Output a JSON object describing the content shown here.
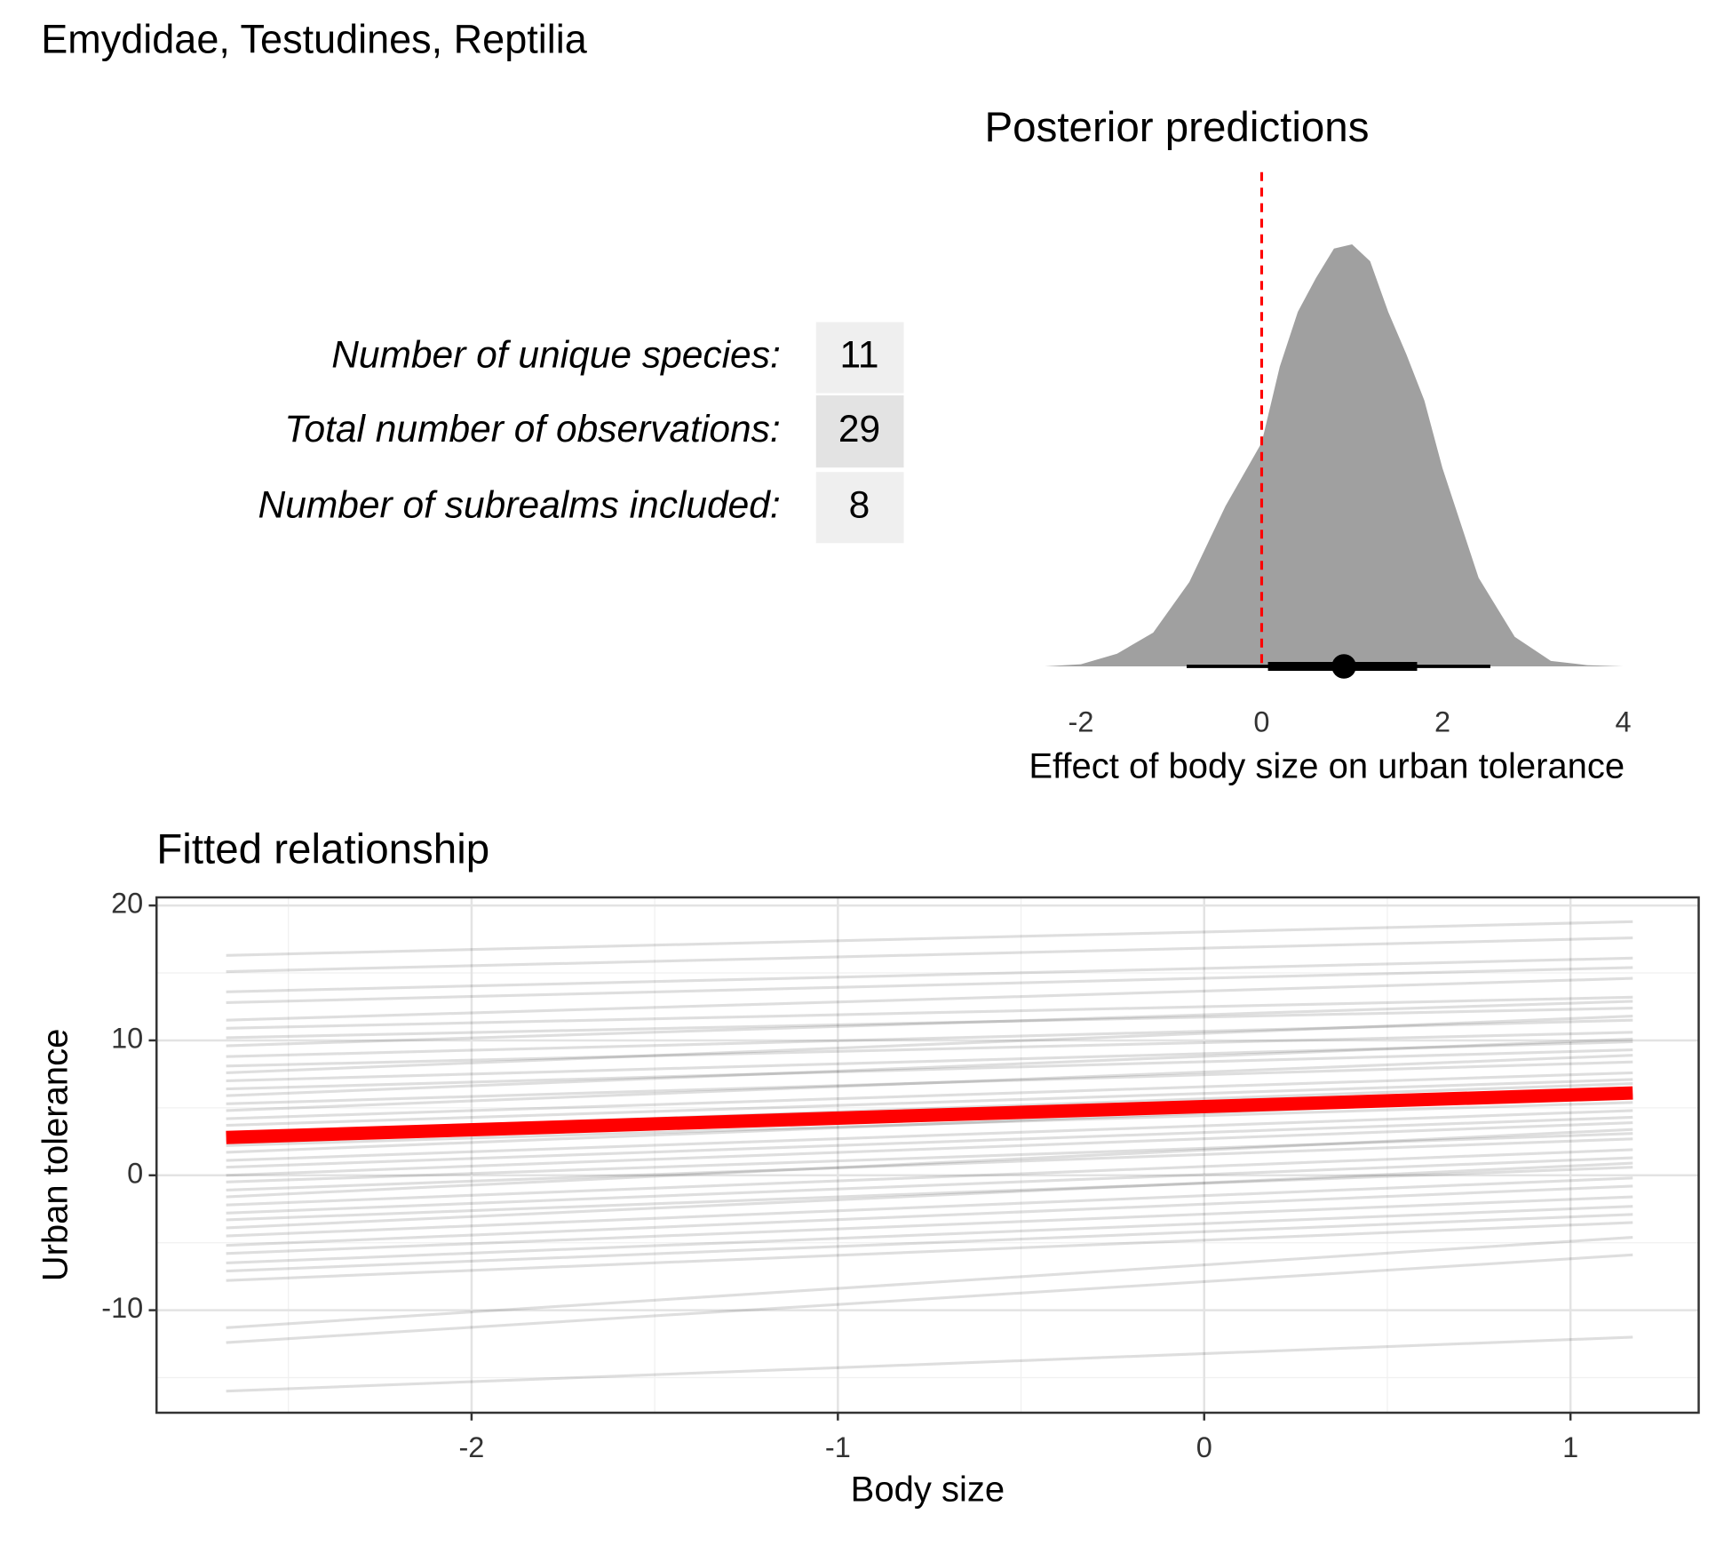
{
  "title": "Emydidae, Testudines, Reptilia",
  "table": {
    "rows": [
      [
        "Number of unique species:",
        11
      ],
      [
        "Total number of observations:",
        29
      ],
      [
        "Number of subrealms included:",
        8
      ]
    ],
    "cell_colors": [
      "#efefef",
      "#e3e3e3",
      "#efefef"
    ]
  },
  "chart_data": [
    {
      "type": "density",
      "title": "Posterior predictions",
      "xlabel": "Effect of body size on urban tolerance",
      "x": [
        -2.4,
        -2.0,
        -1.6,
        -1.2,
        -0.8,
        -0.4,
        0.0,
        0.2,
        0.4,
        0.6,
        0.8,
        1.0,
        1.2,
        1.4,
        1.6,
        1.8,
        2.0,
        2.2,
        2.4,
        2.8,
        3.2,
        3.6,
        4.0
      ],
      "values": [
        0,
        0.005,
        0.03,
        0.08,
        0.2,
        0.38,
        0.53,
        0.71,
        0.84,
        0.92,
        0.99,
        1.0,
        0.96,
        0.84,
        0.74,
        0.63,
        0.47,
        0.34,
        0.21,
        0.07,
        0.013,
        0.003,
        0
      ],
      "color": "#a0a0a0",
      "xlim": [
        -2.4,
        4.0
      ],
      "ylim": [
        0,
        1.0
      ],
      "xticks": [
        -2,
        0,
        2,
        4
      ],
      "interval": {
        "median": 0.91,
        "inner": [
          0.07,
          1.72
        ],
        "outer": [
          -0.83,
          2.53
        ]
      },
      "ref_line": 0,
      "ref_color": "#ff0000"
    },
    {
      "type": "line",
      "title": "Fitted relationship",
      "xlabel": "Body size",
      "ylabel": "Urban tolerance",
      "x": [
        -2.67,
        1.17
      ],
      "draws": [
        [
          16.3,
          18.8
        ],
        [
          15.1,
          17.6
        ],
        [
          13.6,
          16.1
        ],
        [
          12.8,
          15.4
        ],
        [
          11.5,
          14.6
        ],
        [
          10.9,
          13.2
        ],
        [
          10.2,
          12.4
        ],
        [
          9.6,
          12.9
        ],
        [
          8.8,
          11.5
        ],
        [
          8.1,
          10.6
        ],
        [
          7.6,
          11.8
        ],
        [
          7.0,
          9.9
        ],
        [
          6.4,
          9.3
        ],
        [
          5.9,
          10.1
        ],
        [
          5.3,
          8.4
        ],
        [
          4.8,
          8.9
        ],
        [
          4.2,
          7.6
        ],
        [
          3.7,
          7.1
        ],
        [
          3.1,
          6.8
        ],
        [
          2.6,
          6.0
        ],
        [
          2.2,
          5.4
        ],
        [
          1.7,
          5.9
        ],
        [
          1.1,
          4.8
        ],
        [
          0.6,
          4.3
        ],
        [
          0.0,
          3.9
        ],
        [
          -0.5,
          3.1
        ],
        [
          -1.1,
          2.7
        ],
        [
          -1.6,
          3.4
        ],
        [
          -2.2,
          1.9
        ],
        [
          -2.8,
          1.3
        ],
        [
          -3.3,
          0.6
        ],
        [
          -3.9,
          0.9
        ],
        [
          -4.5,
          -0.2
        ],
        [
          -5.2,
          -0.8
        ],
        [
          -5.8,
          -1.6
        ],
        [
          -6.5,
          -2.3
        ],
        [
          -7.1,
          -2.9
        ],
        [
          -7.8,
          -3.5
        ],
        [
          -11.3,
          -4.6
        ],
        [
          -12.4,
          -5.9
        ],
        [
          -16.0,
          -12.0
        ]
      ],
      "draw_color": "#000000",
      "draw_opacity": 0.13,
      "fit": {
        "values": [
          2.8,
          6.1
        ],
        "color": "#ff0000"
      },
      "xlim": [
        -2.86,
        1.35
      ],
      "ylim": [
        -17.6,
        20.6
      ],
      "xticks": [
        -2,
        -1,
        0,
        1
      ],
      "yticks": [
        -10,
        0,
        10,
        20
      ],
      "xminor_ticks": [
        -2.5,
        -1.5,
        -0.5,
        0.5
      ],
      "yminor_ticks": [
        -15,
        -5,
        5,
        15
      ],
      "grid": true
    }
  ]
}
